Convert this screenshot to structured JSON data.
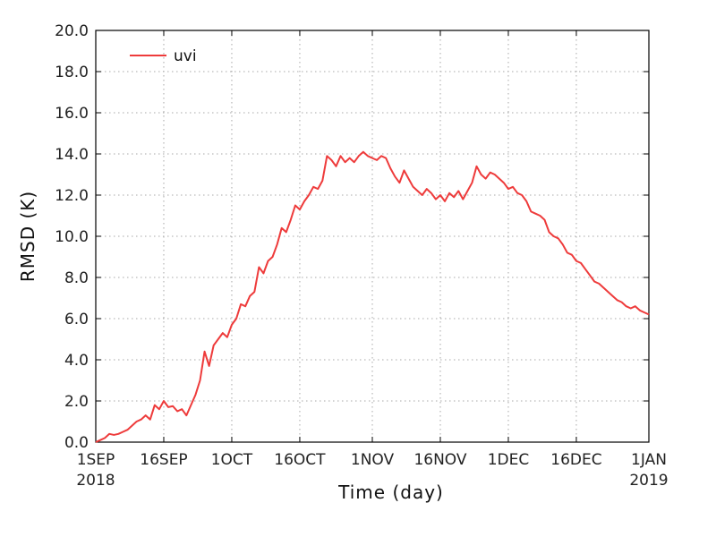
{
  "chart_data": {
    "type": "line",
    "title": "",
    "xlabel": "Time (day)",
    "ylabel": "RMSD (K)",
    "ylim": [
      0,
      20
    ],
    "xlim": [
      "2018-09-01",
      "2019-01-01"
    ],
    "grid": true,
    "legend_position": "top-left",
    "y_ticks": [
      "0.0",
      "2.0",
      "4.0",
      "6.0",
      "8.0",
      "10.0",
      "12.0",
      "14.0",
      "16.0",
      "18.0",
      "20.0"
    ],
    "x_ticks": [
      {
        "date": "2018-09-01",
        "label": "1SEP",
        "sublabel": "2018"
      },
      {
        "date": "2018-09-16",
        "label": "16SEP",
        "sublabel": ""
      },
      {
        "date": "2018-10-01",
        "label": "1OCT",
        "sublabel": ""
      },
      {
        "date": "2018-10-16",
        "label": "16OCT",
        "sublabel": ""
      },
      {
        "date": "2018-11-01",
        "label": "1NOV",
        "sublabel": ""
      },
      {
        "date": "2018-11-16",
        "label": "16NOV",
        "sublabel": ""
      },
      {
        "date": "2018-12-01",
        "label": "1DEC",
        "sublabel": ""
      },
      {
        "date": "2018-12-16",
        "label": "16DEC",
        "sublabel": ""
      },
      {
        "date": "2019-01-01",
        "label": "1JAN",
        "sublabel": "2019"
      }
    ],
    "series": [
      {
        "name": "uvi",
        "color": "#ee3b3b",
        "points": [
          [
            "2018-09-01",
            0.0
          ],
          [
            "2018-09-02",
            0.1
          ],
          [
            "2018-09-03",
            0.2
          ],
          [
            "2018-09-04",
            0.4
          ],
          [
            "2018-09-05",
            0.35
          ],
          [
            "2018-09-06",
            0.4
          ],
          [
            "2018-09-07",
            0.5
          ],
          [
            "2018-09-08",
            0.6
          ],
          [
            "2018-09-09",
            0.8
          ],
          [
            "2018-09-10",
            1.0
          ],
          [
            "2018-09-11",
            1.1
          ],
          [
            "2018-09-12",
            1.3
          ],
          [
            "2018-09-13",
            1.1
          ],
          [
            "2018-09-14",
            1.8
          ],
          [
            "2018-09-15",
            1.6
          ],
          [
            "2018-09-16",
            2.0
          ],
          [
            "2018-09-17",
            1.7
          ],
          [
            "2018-09-18",
            1.75
          ],
          [
            "2018-09-19",
            1.5
          ],
          [
            "2018-09-20",
            1.6
          ],
          [
            "2018-09-21",
            1.3
          ],
          [
            "2018-09-22",
            1.8
          ],
          [
            "2018-09-23",
            2.3
          ],
          [
            "2018-09-24",
            3.0
          ],
          [
            "2018-09-25",
            4.4
          ],
          [
            "2018-09-26",
            3.7
          ],
          [
            "2018-09-27",
            4.7
          ],
          [
            "2018-09-28",
            5.0
          ],
          [
            "2018-09-29",
            5.3
          ],
          [
            "2018-09-30",
            5.1
          ],
          [
            "2018-10-01",
            5.7
          ],
          [
            "2018-10-02",
            6.0
          ],
          [
            "2018-10-03",
            6.7
          ],
          [
            "2018-10-04",
            6.6
          ],
          [
            "2018-10-05",
            7.1
          ],
          [
            "2018-10-06",
            7.3
          ],
          [
            "2018-10-07",
            8.5
          ],
          [
            "2018-10-08",
            8.2
          ],
          [
            "2018-10-09",
            8.8
          ],
          [
            "2018-10-10",
            9.0
          ],
          [
            "2018-10-11",
            9.6
          ],
          [
            "2018-10-12",
            10.4
          ],
          [
            "2018-10-13",
            10.2
          ],
          [
            "2018-10-14",
            10.8
          ],
          [
            "2018-10-15",
            11.5
          ],
          [
            "2018-10-16",
            11.3
          ],
          [
            "2018-10-17",
            11.7
          ],
          [
            "2018-10-18",
            12.0
          ],
          [
            "2018-10-19",
            12.4
          ],
          [
            "2018-10-20",
            12.3
          ],
          [
            "2018-10-21",
            12.7
          ],
          [
            "2018-10-22",
            13.9
          ],
          [
            "2018-10-23",
            13.7
          ],
          [
            "2018-10-24",
            13.4
          ],
          [
            "2018-10-25",
            13.9
          ],
          [
            "2018-10-26",
            13.6
          ],
          [
            "2018-10-27",
            13.8
          ],
          [
            "2018-10-28",
            13.6
          ],
          [
            "2018-10-29",
            13.9
          ],
          [
            "2018-10-30",
            14.1
          ],
          [
            "2018-10-31",
            13.9
          ],
          [
            "2018-11-01",
            13.8
          ],
          [
            "2018-11-02",
            13.7
          ],
          [
            "2018-11-03",
            13.9
          ],
          [
            "2018-11-04",
            13.8
          ],
          [
            "2018-11-05",
            13.3
          ],
          [
            "2018-11-06",
            12.9
          ],
          [
            "2018-11-07",
            12.6
          ],
          [
            "2018-11-08",
            13.2
          ],
          [
            "2018-11-09",
            12.8
          ],
          [
            "2018-11-10",
            12.4
          ],
          [
            "2018-11-11",
            12.2
          ],
          [
            "2018-11-12",
            12.0
          ],
          [
            "2018-11-13",
            12.3
          ],
          [
            "2018-11-14",
            12.1
          ],
          [
            "2018-11-15",
            11.8
          ],
          [
            "2018-11-16",
            12.0
          ],
          [
            "2018-11-17",
            11.7
          ],
          [
            "2018-11-18",
            12.1
          ],
          [
            "2018-11-19",
            11.9
          ],
          [
            "2018-11-20",
            12.2
          ],
          [
            "2018-11-21",
            11.8
          ],
          [
            "2018-11-22",
            12.2
          ],
          [
            "2018-11-23",
            12.6
          ],
          [
            "2018-11-24",
            13.4
          ],
          [
            "2018-11-25",
            13.0
          ],
          [
            "2018-11-26",
            12.8
          ],
          [
            "2018-11-27",
            13.1
          ],
          [
            "2018-11-28",
            13.0
          ],
          [
            "2018-11-29",
            12.8
          ],
          [
            "2018-11-30",
            12.6
          ],
          [
            "2018-12-01",
            12.3
          ],
          [
            "2018-12-02",
            12.4
          ],
          [
            "2018-12-03",
            12.1
          ],
          [
            "2018-12-04",
            12.0
          ],
          [
            "2018-12-05",
            11.7
          ],
          [
            "2018-12-06",
            11.2
          ],
          [
            "2018-12-07",
            11.1
          ],
          [
            "2018-12-08",
            11.0
          ],
          [
            "2018-12-09",
            10.8
          ],
          [
            "2018-12-10",
            10.2
          ],
          [
            "2018-12-11",
            10.0
          ],
          [
            "2018-12-12",
            9.9
          ],
          [
            "2018-12-13",
            9.6
          ],
          [
            "2018-12-14",
            9.2
          ],
          [
            "2018-12-15",
            9.1
          ],
          [
            "2018-12-16",
            8.8
          ],
          [
            "2018-12-17",
            8.7
          ],
          [
            "2018-12-18",
            8.4
          ],
          [
            "2018-12-19",
            8.1
          ],
          [
            "2018-12-20",
            7.8
          ],
          [
            "2018-12-21",
            7.7
          ],
          [
            "2018-12-22",
            7.5
          ],
          [
            "2018-12-23",
            7.3
          ],
          [
            "2018-12-24",
            7.1
          ],
          [
            "2018-12-25",
            6.9
          ],
          [
            "2018-12-26",
            6.8
          ],
          [
            "2018-12-27",
            6.6
          ],
          [
            "2018-12-28",
            6.5
          ],
          [
            "2018-12-29",
            6.6
          ],
          [
            "2018-12-30",
            6.4
          ],
          [
            "2018-12-31",
            6.3
          ],
          [
            "2019-01-01",
            6.2
          ]
        ]
      }
    ]
  }
}
